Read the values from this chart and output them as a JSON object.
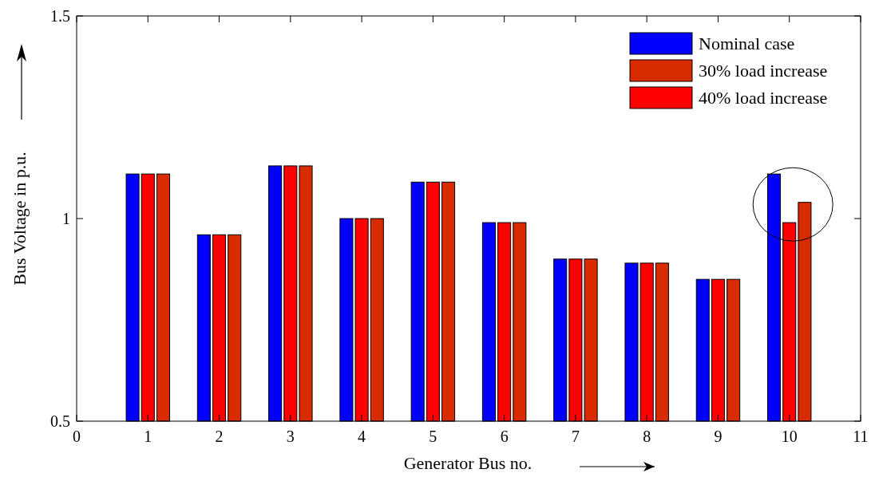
{
  "chart_data": {
    "type": "bar",
    "xlabel": "Generator Bus no.",
    "ylabel": "Bus Voltage in p.u.",
    "x": [
      1,
      2,
      3,
      4,
      5,
      6,
      7,
      8,
      9,
      10
    ],
    "series": [
      {
        "name": "Nominal case",
        "color": "#0000ff",
        "values": [
          1.11,
          0.96,
          1.13,
          1.0,
          1.09,
          0.99,
          0.9,
          0.89,
          0.85,
          1.11
        ]
      },
      {
        "name": "30% load increase",
        "color": "#d92b00",
        "values": [
          1.11,
          0.96,
          1.13,
          1.0,
          1.09,
          0.99,
          0.9,
          0.89,
          0.85,
          1.04
        ]
      },
      {
        "name": "40% load increase",
        "color": "#ff0000",
        "values": [
          1.11,
          0.96,
          1.13,
          1.0,
          1.09,
          0.99,
          0.9,
          0.89,
          0.85,
          0.99
        ]
      }
    ],
    "xlim": [
      0,
      11
    ],
    "xticks": [
      0,
      1,
      2,
      3,
      4,
      5,
      6,
      7,
      8,
      9,
      10,
      11
    ],
    "ylim": [
      0.5,
      1.5
    ],
    "yticks": [
      0.5,
      1,
      1.5
    ],
    "grid": false,
    "legend": "top right"
  }
}
